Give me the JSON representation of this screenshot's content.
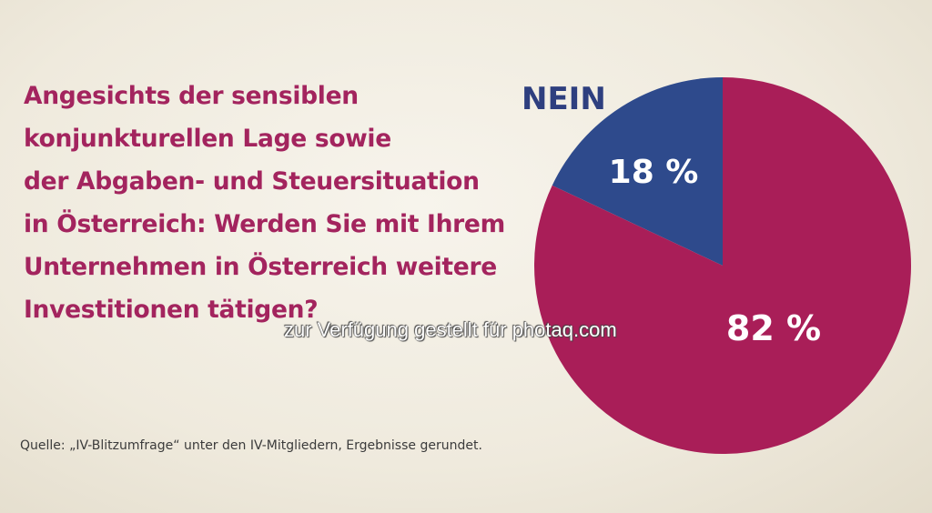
{
  "question": {
    "lines": [
      "Angesichts der sensiblen",
      "konjunkturellen Lage sowie",
      "der Abgaben- und Steuersituation",
      "in Österreich: Werden Sie mit Ihrem",
      "Unternehmen in Österreich weitere",
      "Investitionen tätigen?"
    ]
  },
  "watermark": "zur Verfügung gestellt für photaq.com",
  "source": "Quelle: „IV-Blitzumfrage“ unter den IV-Mitgliedern, Ergebnisse gerundet.",
  "chart_data": {
    "type": "pie",
    "slices": [
      {
        "name": "NEIN",
        "value": 18,
        "label": "18 %",
        "color": "#2e4a8c"
      },
      {
        "name": "",
        "value": 82,
        "label": "82 %",
        "color": "#a91e58"
      }
    ],
    "category_label": "NEIN",
    "category_label_color": "#2e3f7f",
    "value_label_color": "#ffffff"
  }
}
